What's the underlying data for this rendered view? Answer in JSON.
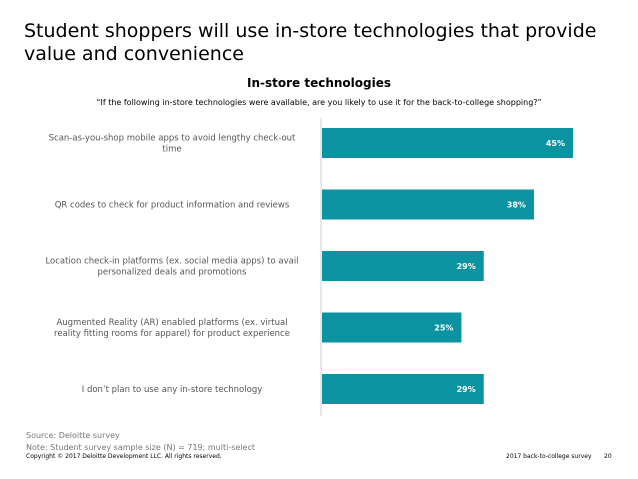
{
  "slide": {
    "title": "Student shoppers will use in-store technologies that provide value and convenience"
  },
  "chart_data": {
    "type": "bar",
    "orientation": "horizontal",
    "title": "In-store technologies",
    "subtitle": "“If the following in-store technologies were available, are you likely to use it for the back-to-college shopping?”",
    "categories": [
      [
        "Scan-as-you-shop mobile apps to avoid lengthy check-out",
        "time"
      ],
      [
        "QR codes to check for product information and reviews"
      ],
      [
        "Location check-in platforms (ex. social media apps) to avail",
        "personalized deals and promotions"
      ],
      [
        "Augmented Reality (AR) enabled platforms (ex. virtual",
        "reality fitting rooms for apparel) for product experience"
      ],
      [
        "I don’t plan to use any in-store technology"
      ]
    ],
    "values": [
      45,
      38,
      29,
      25,
      29
    ],
    "data_labels": [
      "45%",
      "38%",
      "29%",
      "25%",
      "29%"
    ],
    "xlim": [
      0,
      45
    ],
    "unit": "%",
    "bar_color": "#0C93A1",
    "grid": false,
    "legend": "none"
  },
  "source": {
    "line1": "Source: Deloitte survey",
    "line2": "Note:  Student survey sample size (N) = 719; multi-select"
  },
  "footer": {
    "copyright": "Copyright © 2017 Deloitte Development LLC. All rights reserved.",
    "survey": "2017 back-to-college survey",
    "page": "20"
  }
}
